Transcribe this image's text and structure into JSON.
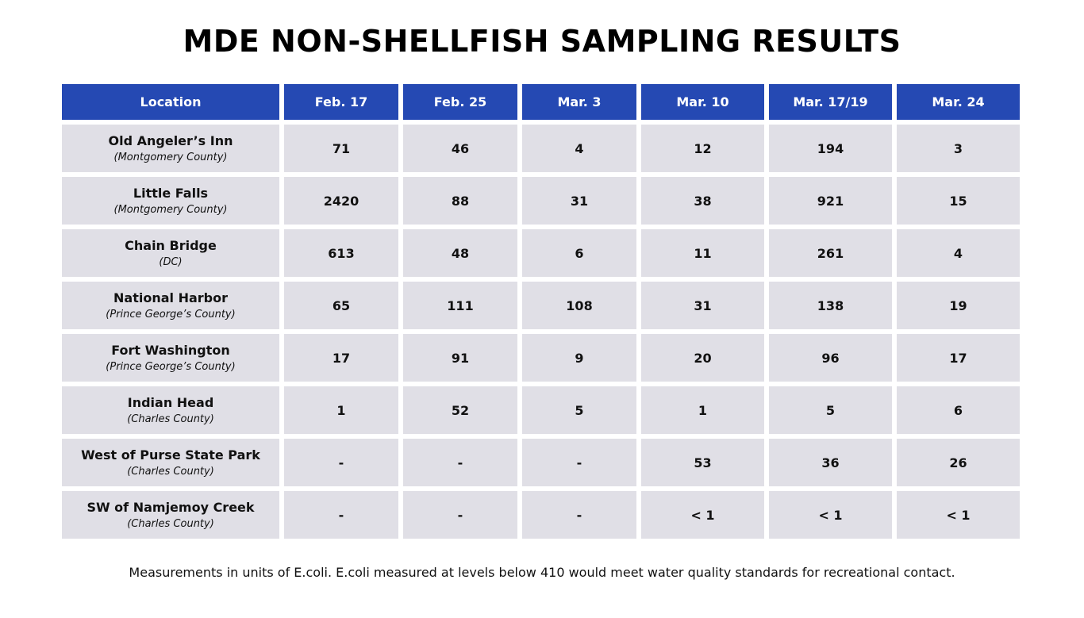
{
  "title": "MDE NON-SHELLFISH SAMPLING RESULTS",
  "table": {
    "header": [
      "Location",
      "Feb. 17",
      "Feb. 25",
      "Mar. 3",
      "Mar. 10",
      "Mar. 17/19",
      "Mar. 24"
    ],
    "rows": [
      {
        "location": "Old Angeler’s Inn",
        "county": "(Montgomery County)",
        "values": [
          71,
          46,
          4,
          12,
          194,
          3
        ]
      },
      {
        "location": "Little Falls",
        "county": "(Montgomery County)",
        "values": [
          2420,
          88,
          31,
          38,
          921,
          15
        ]
      },
      {
        "location": "Chain Bridge",
        "county": "(DC)",
        "values": [
          613,
          48,
          6,
          11,
          261,
          4
        ]
      },
      {
        "location": "National Harbor",
        "county": "(Prince George’s County)",
        "values": [
          65,
          111,
          108,
          31,
          138,
          19
        ]
      },
      {
        "location": "Fort Washington",
        "county": "(Prince George’s County)",
        "values": [
          17,
          91,
          9,
          20,
          96,
          17
        ]
      },
      {
        "location": "Indian Head",
        "county": "(Charles County)",
        "values": [
          1,
          52,
          5,
          1,
          5,
          6
        ]
      },
      {
        "location": "West of Purse State Park",
        "county": "(Charles County)",
        "values": [
          "-",
          "-",
          "-",
          53,
          36,
          26
        ]
      },
      {
        "location": "SW of Namjemoy Creek",
        "county": "(Charles County)",
        "values": [
          "-",
          "-",
          "-",
          "< 1",
          "< 1",
          "< 1"
        ]
      }
    ]
  },
  "note": "Measurements in units of E.coli. E.coli measured at levels below 410 would meet water quality standards for recreational contact."
}
